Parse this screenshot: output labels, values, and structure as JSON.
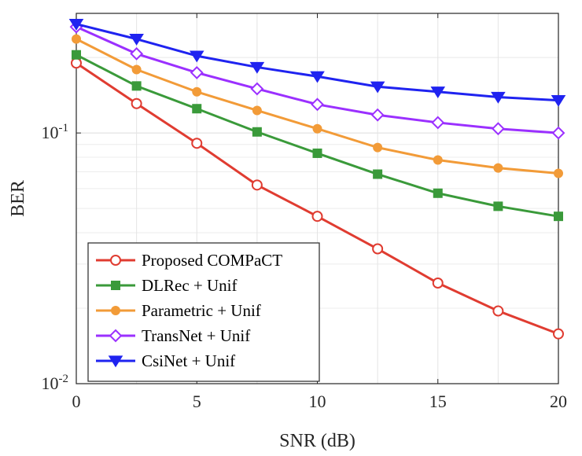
{
  "chart_data": {
    "type": "line",
    "xlabel": "SNR (dB)",
    "ylabel": "BER",
    "xlim": [
      0,
      20
    ],
    "ylim": [
      0.01,
      0.3
    ],
    "yscale": "log",
    "grid": true,
    "legend_position": "bottom-left",
    "x_ticks": [
      0,
      5,
      10,
      15,
      20
    ],
    "x_tick_labels": [
      "0",
      "5",
      "10",
      "15",
      "20"
    ],
    "y_ticks": [
      {
        "value": 0.1,
        "base": "10",
        "exp": "-1"
      },
      {
        "value": 0.01,
        "base": "10",
        "exp": "-2"
      }
    ],
    "x": [
      0,
      2.5,
      5,
      7.5,
      10,
      12.5,
      15,
      17.5,
      20
    ],
    "series": [
      {
        "name": "Proposed COMPaCT",
        "color": "#e03c31",
        "marker": "circle-open",
        "values": [
          0.19,
          0.131,
          0.091,
          0.062,
          0.0465,
          0.0345,
          0.0252,
          0.0195,
          0.0158
        ]
      },
      {
        "name": "DLRec + Unif",
        "color": "#3a9a3a",
        "marker": "square-filled",
        "values": [
          0.205,
          0.154,
          0.125,
          0.101,
          0.083,
          0.0685,
          0.0575,
          0.051,
          0.0465
        ]
      },
      {
        "name": "Parametric + Unif",
        "color": "#f29b38",
        "marker": "circle-filled",
        "values": [
          0.237,
          0.179,
          0.146,
          0.123,
          0.104,
          0.0875,
          0.078,
          0.0725,
          0.069
        ]
      },
      {
        "name": "TransNet + Unif",
        "color": "#9b30ff",
        "marker": "diamond-open",
        "values": [
          0.265,
          0.207,
          0.174,
          0.15,
          0.13,
          0.118,
          0.11,
          0.104,
          0.1
        ]
      },
      {
        "name": "CsiNet + Unif",
        "color": "#1f23f0",
        "marker": "triangle-down-filled",
        "values": [
          0.272,
          0.237,
          0.203,
          0.183,
          0.168,
          0.153,
          0.146,
          0.139,
          0.135
        ]
      }
    ]
  }
}
